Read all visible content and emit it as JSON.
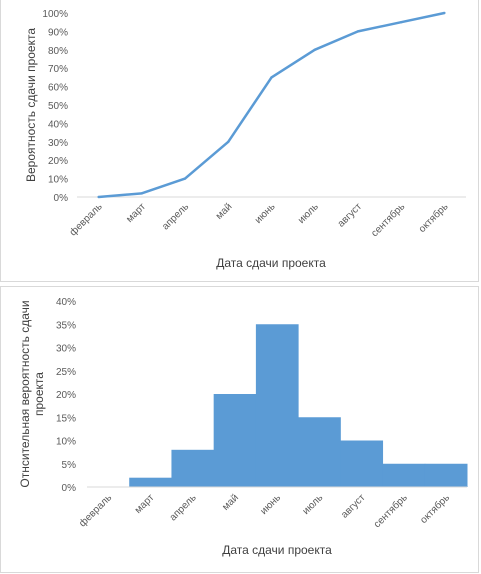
{
  "chart_data": [
    {
      "type": "line",
      "title": "",
      "xlabel": "Дата сдачи проекта",
      "ylabel": "Вероятность  сдачи проекта",
      "categories": [
        "февраль",
        "март",
        "апрель",
        "май",
        "июнь",
        "июль",
        "август",
        "сентябрь",
        "октябрь"
      ],
      "values": [
        0,
        2,
        10,
        30,
        65,
        80,
        90,
        95,
        100
      ],
      "ylim": [
        0,
        100
      ],
      "yticks": [
        "0%",
        "10%",
        "20%",
        "30%",
        "40%",
        "50%",
        "60%",
        "70%",
        "80%",
        "90%",
        "100%"
      ],
      "grid": false,
      "color": "#5b9bd5"
    },
    {
      "type": "area",
      "title": "",
      "xlabel": "Дата сдачи проекта",
      "ylabel": "Отнсительная вероятность сдачи проекта",
      "categories": [
        "февраль",
        "март",
        "апрель",
        "май",
        "июнь",
        "июль",
        "август",
        "сентябрь",
        "октябрь"
      ],
      "values": [
        0,
        2,
        8,
        20,
        35,
        15,
        10,
        5,
        5
      ],
      "ylim": [
        0,
        40
      ],
      "yticks": [
        "0%",
        "5%",
        "10%",
        "15%",
        "20%",
        "25%",
        "30%",
        "35%",
        "40%"
      ],
      "grid": false,
      "color": "#5b9bd5"
    }
  ]
}
